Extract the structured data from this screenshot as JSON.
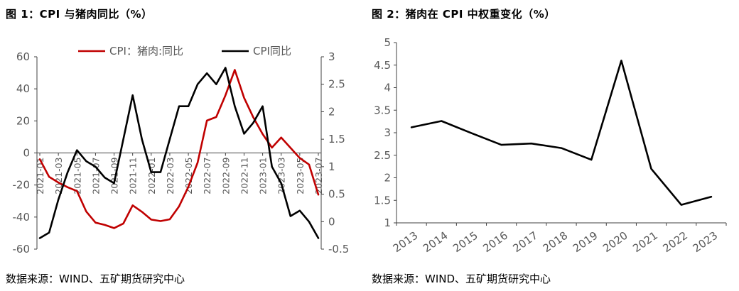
{
  "chart_data": [
    {
      "type": "line",
      "title": "图 1：CPI 与猪肉同比（%）",
      "source": "数据来源：WIND、五矿期货研究中心",
      "x": [
        "2021-01",
        "2021-02",
        "2021-03",
        "2021-04",
        "2021-05",
        "2021-06",
        "2021-07",
        "2021-08",
        "2021-09",
        "2021-10",
        "2021-11",
        "2021-12",
        "2022-01",
        "2022-02",
        "2022-03",
        "2022-04",
        "2022-05",
        "2022-06",
        "2022-07",
        "2022-08",
        "2022-09",
        "2022-10",
        "2022-11",
        "2022-12",
        "2023-01",
        "2023-02",
        "2023-03",
        "2023-04",
        "2023-05",
        "2023-06",
        "2023-07"
      ],
      "x_tick_labels": [
        "2021-01",
        "2021-03",
        "2021-05",
        "2021-07",
        "2021-09",
        "2021-11",
        "2022-01",
        "2022-03",
        "2022-05",
        "2022-07",
        "2022-09",
        "2022-11",
        "2023-01",
        "2023-03",
        "2023-05",
        "2023-07"
      ],
      "y_left_ticks": [
        "60",
        "40",
        "20",
        "0",
        "-20",
        "-40",
        "-60"
      ],
      "y_right_ticks": [
        "3",
        "2.5",
        "2",
        "1.5",
        "1",
        "0.5",
        "0",
        "-0.5"
      ],
      "ylim_left": [
        -60,
        60
      ],
      "ylim_right": [
        -0.5,
        3
      ],
      "legend": "top-center",
      "grid": false,
      "series": [
        {
          "name": "CPI：猪肉:同比",
          "axis": "left",
          "color": "#c00000",
          "values": [
            -3.9,
            -14.9,
            -18.4,
            -21.4,
            -23.8,
            -36.5,
            -43.5,
            -44.9,
            -46.9,
            -44.0,
            -32.7,
            -36.7,
            -41.6,
            -42.5,
            -41.4,
            -33.3,
            -21.1,
            -6.0,
            20.2,
            22.4,
            36.0,
            51.8,
            34.4,
            22.2,
            11.8,
            3.3,
            9.6,
            3.2,
            -3.2,
            -7.2,
            -26.0
          ]
        },
        {
          "name": "CPI同比",
          "axis": "right",
          "color": "#000000",
          "values": [
            -0.3,
            -0.2,
            0.4,
            0.9,
            1.3,
            1.1,
            1.0,
            0.8,
            0.7,
            1.5,
            2.3,
            1.5,
            0.9,
            0.9,
            1.5,
            2.1,
            2.1,
            2.5,
            2.7,
            2.5,
            2.8,
            2.1,
            1.6,
            1.8,
            2.1,
            1.0,
            0.7,
            0.1,
            0.2,
            0.0,
            -0.3
          ]
        }
      ]
    },
    {
      "type": "line",
      "title": "图 2：猪肉在 CPI 中权重变化（%）",
      "source": "数据来源：WIND、五矿期货研究中心",
      "x": [
        "2013",
        "2014",
        "2015",
        "2016",
        "2017",
        "2018",
        "2019",
        "2020",
        "2021",
        "2022",
        "2023"
      ],
      "y_ticks": [
        "5",
        "4.5",
        "4",
        "3.5",
        "3",
        "2.5",
        "2",
        "1.5",
        "1"
      ],
      "ylim": [
        1,
        5
      ],
      "grid": false,
      "series": [
        {
          "name": "",
          "color": "#000000",
          "values": [
            3.12,
            3.26,
            2.99,
            2.73,
            2.76,
            2.66,
            2.4,
            4.6,
            2.2,
            1.4,
            1.58
          ]
        }
      ]
    }
  ]
}
